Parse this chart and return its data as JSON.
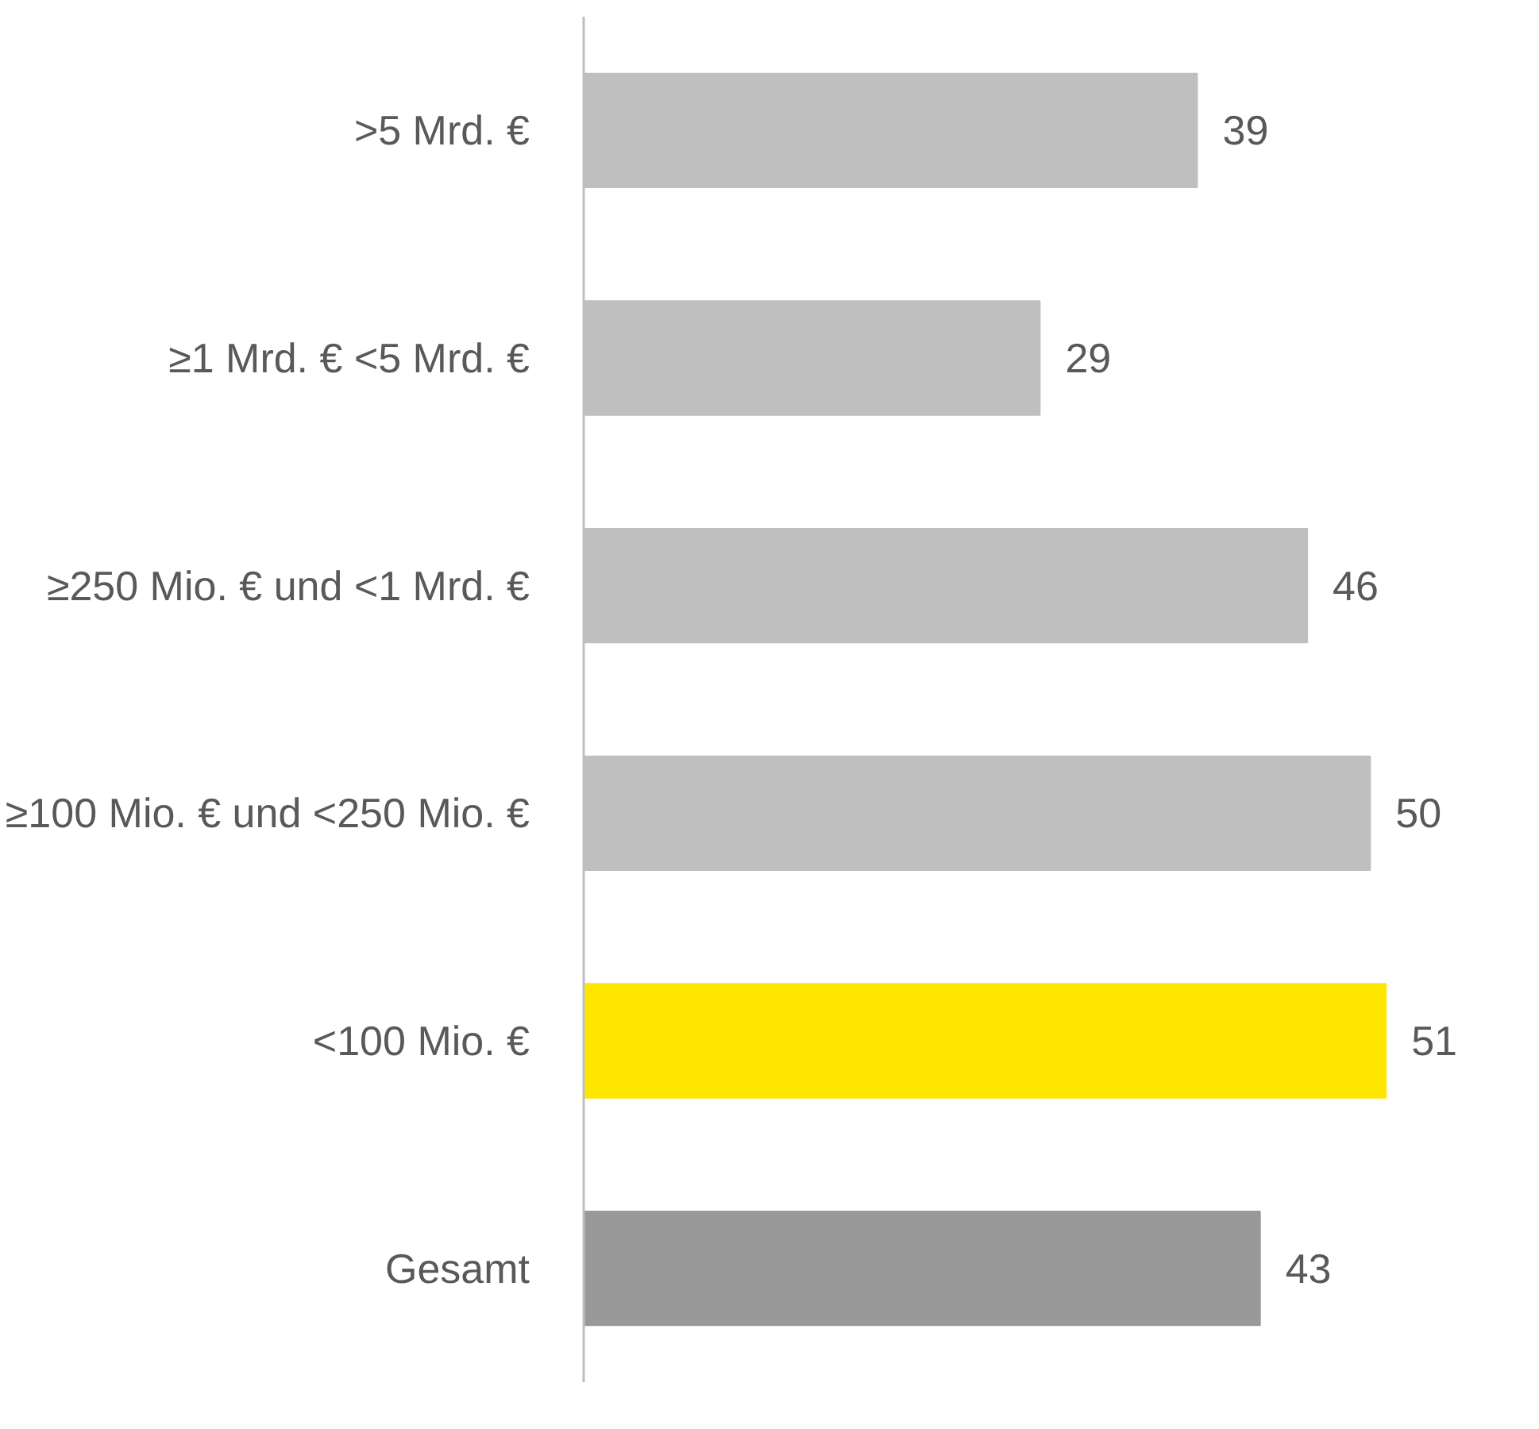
{
  "chart_data": {
    "type": "bar",
    "orientation": "horizontal",
    "categories": [
      ">5 Mrd. €",
      "≥1 Mrd. € <5 Mrd. €",
      "≥250 Mio. € und <1 Mrd. €",
      "≥100 Mio. € und <250 Mio. €",
      "<100 Mio. €",
      "Gesamt"
    ],
    "values": [
      39,
      29,
      46,
      50,
      51,
      43
    ],
    "colors": [
      "#bfbfbf",
      "#bfbfbf",
      "#bfbfbf",
      "#bfbfbf",
      "#ffe600",
      "#999999"
    ],
    "data_labels": true,
    "grid": false
  }
}
